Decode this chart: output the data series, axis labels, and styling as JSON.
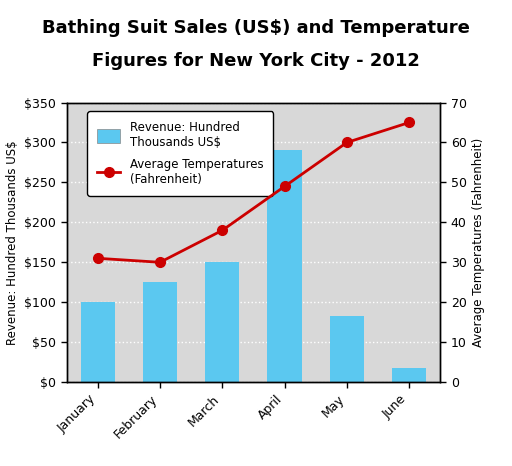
{
  "months": [
    "January",
    "February",
    "March",
    "April",
    "May",
    "June"
  ],
  "revenue": [
    100,
    125,
    150,
    290,
    83,
    18
  ],
  "temperature": [
    31,
    30,
    38,
    49,
    60,
    65
  ],
  "bar_color": "#5bc8f0",
  "line_color": "#cc0000",
  "marker_color": "#cc0000",
  "title_line1": "Bathing Suit Sales (US$) and Temperature",
  "title_line2": "Figures for New York City - 2012",
  "ylabel_left": "Revenue: Hundred Thousands US$",
  "ylabel_right": "Average Temperatures (Fahrenheit)",
  "ylim_left": [
    0,
    350
  ],
  "ylim_right": [
    0,
    70
  ],
  "yticks_left": [
    0,
    50,
    100,
    150,
    200,
    250,
    300,
    350
  ],
  "ytick_labels_left": [
    "$0",
    "$50",
    "$100",
    "$150",
    "$200",
    "$250",
    "$300",
    "$350"
  ],
  "yticks_right": [
    0,
    10,
    20,
    30,
    40,
    50,
    60,
    70
  ],
  "legend_bar_label": "Revenue: Hundred\nThousands US$",
  "legend_line_label": "Average Temperatures\n(Fahrenheit)",
  "bg_color": "#d8d8d8",
  "outer_bg": "#ffffff",
  "title_fontsize": 13,
  "axis_label_fontsize": 8.5,
  "tick_fontsize": 9,
  "grid_color": "#ffffff",
  "border_color": "#000000"
}
